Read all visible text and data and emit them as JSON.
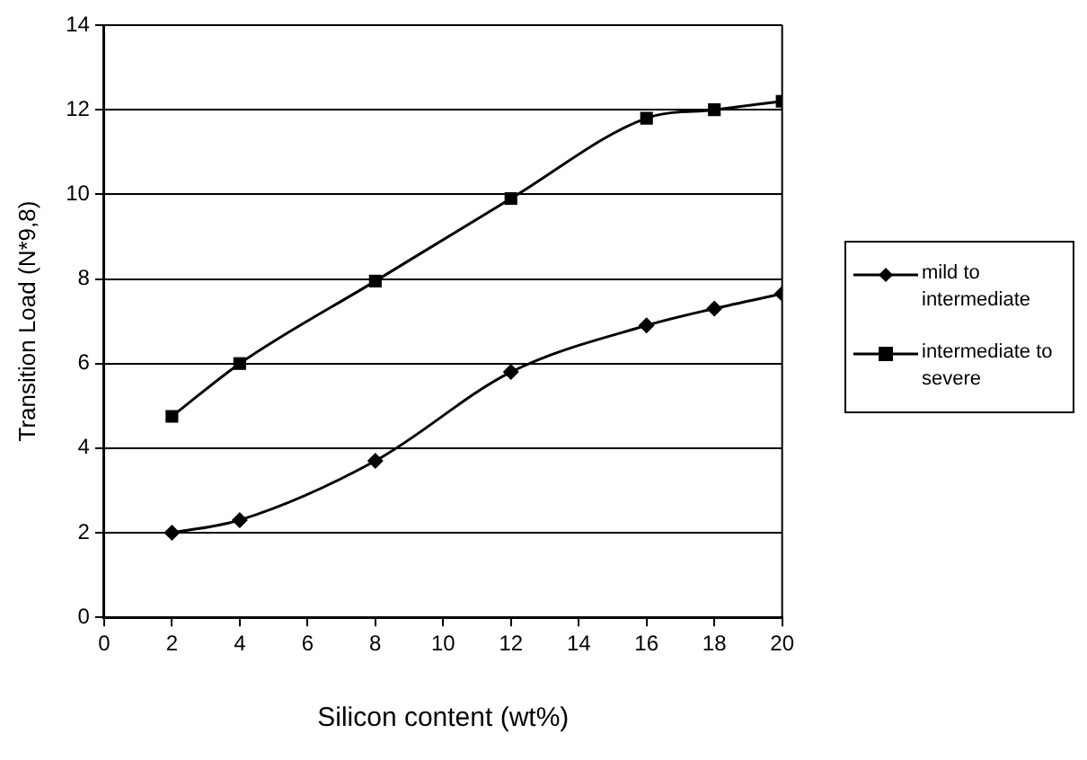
{
  "chart_data": {
    "type": "line",
    "xlabel": "Silicon content (wt%)",
    "ylabel": "Transition Load (N*9,8)",
    "x": [
      2,
      4,
      8,
      12,
      16,
      18,
      20
    ],
    "series": [
      {
        "name": "mild to intermediate",
        "color": "#000000",
        "marker": "diamond",
        "values": [
          2.0,
          2.3,
          3.7,
          5.8,
          6.9,
          7.3,
          7.65
        ]
      },
      {
        "name": "intermediate to severe",
        "color": "#000000",
        "marker": "square",
        "values": [
          4.75,
          6.0,
          7.95,
          9.9,
          11.8,
          12.0,
          12.2
        ]
      }
    ],
    "xlim": [
      0,
      20
    ],
    "xticks": [
      0,
      2,
      4,
      6,
      8,
      10,
      12,
      14,
      16,
      18,
      20
    ],
    "ylim": [
      0,
      14
    ],
    "yticks": [
      0,
      2,
      4,
      6,
      8,
      10,
      12,
      14
    ],
    "grid": "y",
    "legend": "right",
    "line_style": "solid"
  }
}
